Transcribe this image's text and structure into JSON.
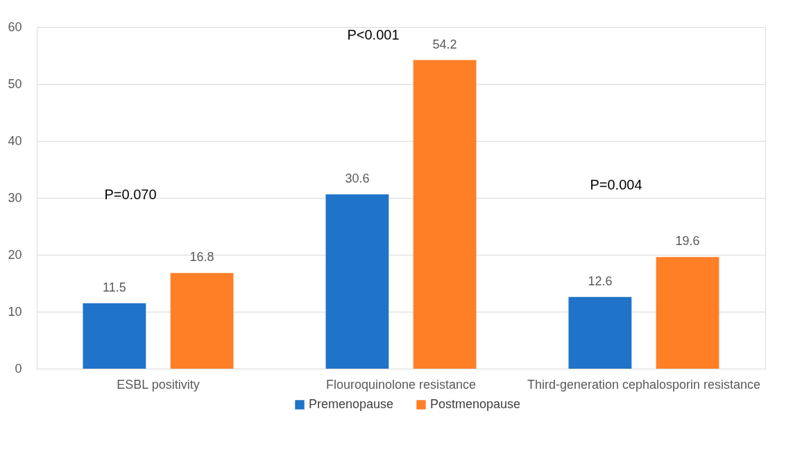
{
  "chart_data": {
    "type": "bar",
    "categories": [
      "ESBL positivity",
      "Flouroquinolone resistance",
      "Third-generation cephalosporin resistance"
    ],
    "series": [
      {
        "name": "Premenopause",
        "color": "#1f73c8",
        "values": [
          11.5,
          30.6,
          12.6
        ]
      },
      {
        "name": "Postmenopause",
        "color": "#ff7f27",
        "values": [
          16.8,
          54.2,
          19.6
        ]
      }
    ],
    "ylim": [
      0,
      60
    ],
    "yticks": [
      0,
      10,
      20,
      30,
      40,
      50,
      60
    ],
    "grid": "y",
    "legend": "bottom",
    "data_labels": true,
    "annotations": [
      "P=0.070",
      "P<0.001",
      "P=0.004"
    ]
  }
}
